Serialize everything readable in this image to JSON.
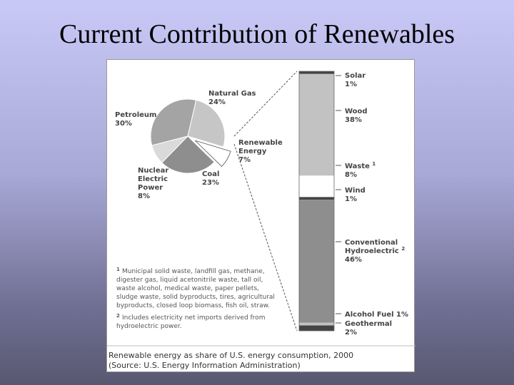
{
  "slide": {
    "title": "Current Contribution of Renewables"
  },
  "chart_data": [
    {
      "type": "pie",
      "categories": [
        "Natural Gas",
        "Renewable Energy",
        "Coal",
        "Nuclear Electric Power",
        "Petroleum"
      ],
      "values": [
        24,
        7,
        23,
        8,
        30
      ],
      "labels": {
        "petroleum": [
          "Petroleum",
          "30%"
        ],
        "natural_gas": [
          "Natural Gas",
          "24%"
        ],
        "renewable": [
          "Renewable",
          "Energy",
          "7%"
        ],
        "coal": [
          "Coal",
          "23%"
        ],
        "nuclear": [
          "Nuclear",
          "Electric",
          "Power",
          "8%"
        ]
      },
      "colors": [
        "#c6c6c6",
        "#ffffff",
        "#8e8e8e",
        "#dadada",
        "#a4a4a4"
      ]
    },
    {
      "type": "bar",
      "categories": [
        "Solar",
        "Wood",
        "Waste",
        "Wind",
        "Conventional Hydroelectric",
        "Alcohol Fuel",
        "Geothermal"
      ],
      "values": [
        1,
        38,
        8,
        1,
        46,
        1,
        2
      ],
      "colors": [
        "#444444",
        "#c2c2c2",
        "#ffffff",
        "#444444",
        "#8e8e8e",
        "#c2c2c2",
        "#444444"
      ],
      "labels": {
        "solar": [
          "Solar",
          "1%"
        ],
        "wood": [
          "Wood",
          "38%"
        ],
        "waste": [
          "Waste",
          "1",
          "8%"
        ],
        "wind": [
          "Wind",
          "1%"
        ],
        "hydro": [
          "Conventional",
          "Hydroelectric",
          "2",
          "46%"
        ],
        "alcohol": [
          "Alcohol Fuel 1%"
        ],
        "geothermal": [
          "Geothermal",
          "2%"
        ]
      }
    }
  ],
  "footnotes": {
    "n1": [
      "1",
      "Municipal solid waste, landfill gas, methane,",
      "digester gas, liquid acetonitrile waste, tall oil,",
      "waste alcohol, medical waste, paper pellets,",
      "sludge waste, solid byproducts, tires, agricultural",
      "byproducts, closed loop biomass, fish oil, straw."
    ],
    "n2": [
      "2",
      "Includes electricity net imports derived from",
      "hydroelectric power."
    ]
  },
  "caption": [
    "Renewable energy as share of U.S. energy consumption, 2000",
    "(Source: U.S. Energy Information Administration)"
  ]
}
